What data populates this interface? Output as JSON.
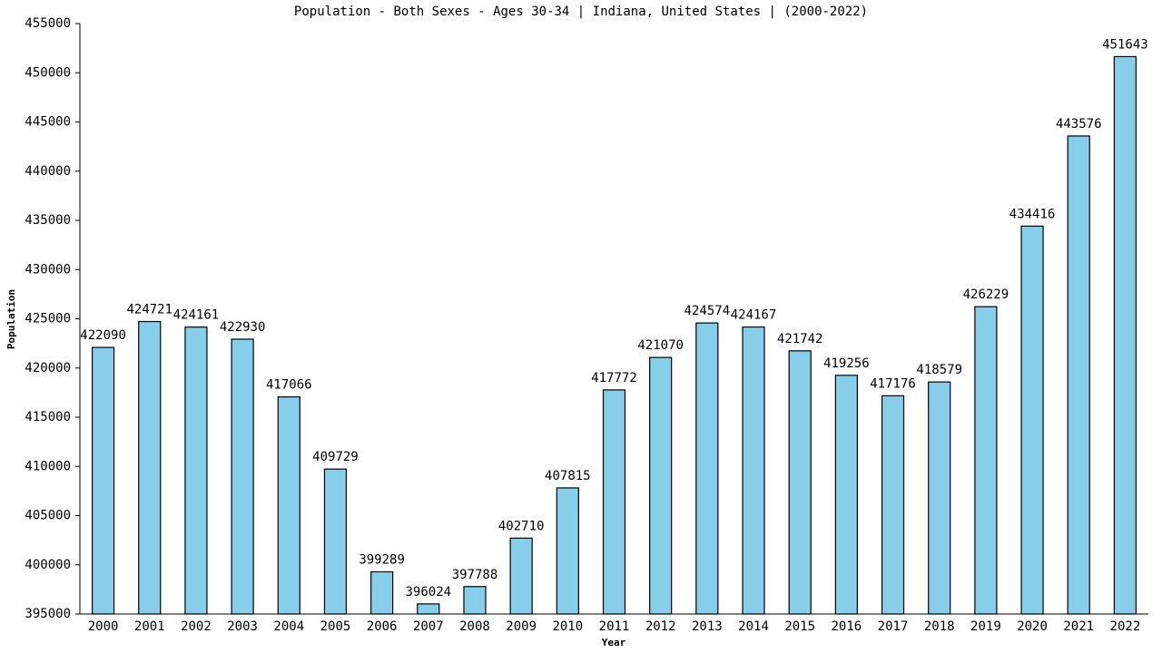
{
  "chart_data": {
    "type": "bar",
    "title": "Population - Both Sexes - Ages 30-34 | Indiana, United States |  (2000-2022)",
    "x_label": "Year",
    "y_label": "Population",
    "categories": [
      "2000",
      "2001",
      "2002",
      "2003",
      "2004",
      "2005",
      "2006",
      "2007",
      "2008",
      "2009",
      "2010",
      "2011",
      "2012",
      "2013",
      "2014",
      "2015",
      "2016",
      "2017",
      "2018",
      "2019",
      "2020",
      "2021",
      "2022"
    ],
    "values": [
      422090,
      424721,
      424161,
      422930,
      417066,
      409729,
      399289,
      396024,
      397788,
      402710,
      407815,
      417772,
      421070,
      424574,
      424167,
      421742,
      419256,
      417176,
      418579,
      426229,
      434416,
      443576,
      451643
    ],
    "color": "#87ceeb",
    "ylim": [
      395000,
      455000
    ],
    "yticks": [
      395000,
      400000,
      405000,
      410000,
      415000,
      420000,
      425000,
      430000,
      435000,
      440000,
      445000,
      450000,
      455000
    ],
    "grid": false
  }
}
